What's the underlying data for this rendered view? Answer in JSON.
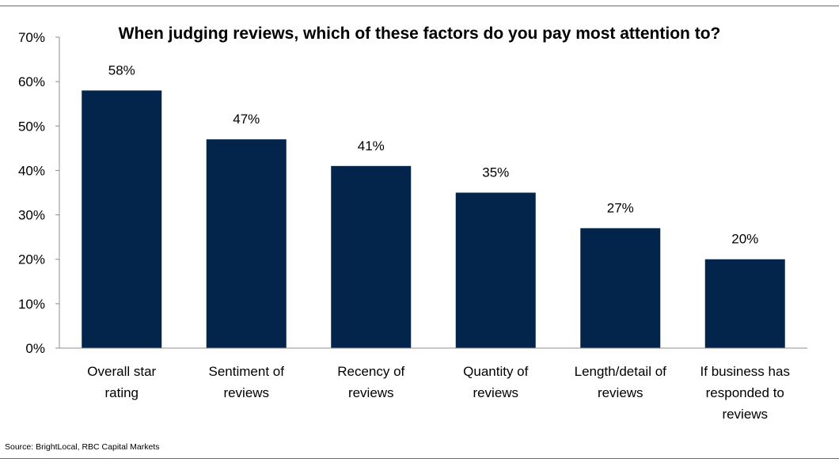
{
  "chart_data": {
    "type": "bar",
    "title": "When judging reviews, which of these factors do you pay most attention to?",
    "categories": [
      [
        "Overall star",
        "rating"
      ],
      [
        "Sentiment of",
        "reviews"
      ],
      [
        "Recency of",
        "reviews"
      ],
      [
        "Quantity of",
        "reviews"
      ],
      [
        "Length/detail of",
        "reviews"
      ],
      [
        "If business has",
        "responded to",
        "reviews"
      ]
    ],
    "values": [
      58,
      47,
      41,
      35,
      27,
      20
    ],
    "data_labels": [
      "58%",
      "47%",
      "41%",
      "35%",
      "27%",
      "20%"
    ],
    "y_ticks": [
      "0%",
      "10%",
      "20%",
      "30%",
      "40%",
      "50%",
      "60%",
      "70%"
    ],
    "ylim": [
      0,
      70
    ],
    "grid": false,
    "bar_color": "#03254C"
  },
  "source": "Source: BrightLocal, RBC Capital Markets"
}
